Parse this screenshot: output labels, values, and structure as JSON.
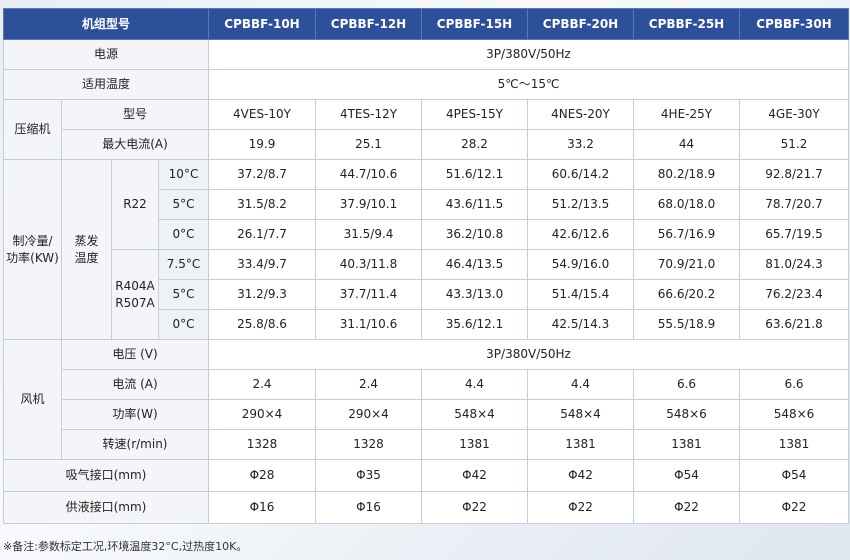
{
  "header": {
    "title": "机组型号",
    "models": [
      "CPBBF-10H",
      "CPBBF-12H",
      "CPBBF-15H",
      "CPBBF-20H",
      "CPBBF-25H",
      "CPBBF-30H"
    ]
  },
  "power_supply": {
    "label": "电源",
    "value": "3P/380V/50Hz"
  },
  "temp_range": {
    "label": "适用温度",
    "value": "5℃～15℃"
  },
  "compressor": {
    "label": "压缩机",
    "model_label": "型号",
    "models": [
      "4VES-10Y",
      "4TES-12Y",
      "4PES-15Y",
      "4NES-20Y",
      "4HE-25Y",
      "4GE-30Y"
    ],
    "max_current_label": "最大电流(A)",
    "max_current": [
      "19.9",
      "25.1",
      "28.2",
      "33.2",
      "44",
      "51.2"
    ]
  },
  "cooling": {
    "label_line1": "制冷量/",
    "label_line2": "功率(KW)",
    "evap_line1": "蒸发",
    "evap_line2": "温度",
    "r22": {
      "label": "R22",
      "rows": [
        {
          "temp": "10°C",
          "values": [
            "37.2/8.7",
            "44.7/10.6",
            "51.6/12.1",
            "60.6/14.2",
            "80.2/18.9",
            "92.8/21.7"
          ]
        },
        {
          "temp": "5°C",
          "values": [
            "31.5/8.2",
            "37.9/10.1",
            "43.6/11.5",
            "51.2/13.5",
            "68.0/18.0",
            "78.7/20.7"
          ]
        },
        {
          "temp": "0°C",
          "values": [
            "26.1/7.7",
            "31.5/9.4",
            "36.2/10.8",
            "42.6/12.6",
            "56.7/16.9",
            "65.7/19.5"
          ]
        }
      ]
    },
    "r404": {
      "label_line1": "R404A",
      "label_line2": "R507A",
      "rows": [
        {
          "temp": "7.5°C",
          "values": [
            "33.4/9.7",
            "40.3/11.8",
            "46.4/13.5",
            "54.9/16.0",
            "70.9/21.0",
            "81.0/24.3"
          ]
        },
        {
          "temp": "5°C",
          "values": [
            "31.2/9.3",
            "37.7/11.4",
            "43.3/13.0",
            "51.4/15.4",
            "66.6/20.2",
            "76.2/23.4"
          ]
        },
        {
          "temp": "0°C",
          "values": [
            "25.8/8.6",
            "31.1/10.6",
            "35.6/12.1",
            "42.5/14.3",
            "55.5/18.9",
            "63.6/21.8"
          ]
        }
      ]
    }
  },
  "fan": {
    "label": "风机",
    "voltage_label": "电压 (V)",
    "voltage": "3P/380V/50Hz",
    "current_label": "电流 (A)",
    "current": [
      "2.4",
      "2.4",
      "4.4",
      "4.4",
      "6.6",
      "6.6"
    ],
    "power_label": "功率(W)",
    "power": [
      "290×4",
      "290×4",
      "548×4",
      "548×4",
      "548×6",
      "548×6"
    ],
    "speed_label": "转速(r/min)",
    "speed": [
      "1328",
      "1328",
      "1381",
      "1381",
      "1381",
      "1381"
    ]
  },
  "suction": {
    "label": "吸气接口(mm)",
    "values": [
      "Φ28",
      "Φ35",
      "Φ42",
      "Φ42",
      "Φ54",
      "Φ54"
    ]
  },
  "liquid": {
    "label": "供液接口(mm)",
    "values": [
      "Φ16",
      "Φ16",
      "Φ22",
      "Φ22",
      "Φ22",
      "Φ22"
    ]
  },
  "note": "※备注:参数标定工况,环境温度32°C,过热度10K。"
}
